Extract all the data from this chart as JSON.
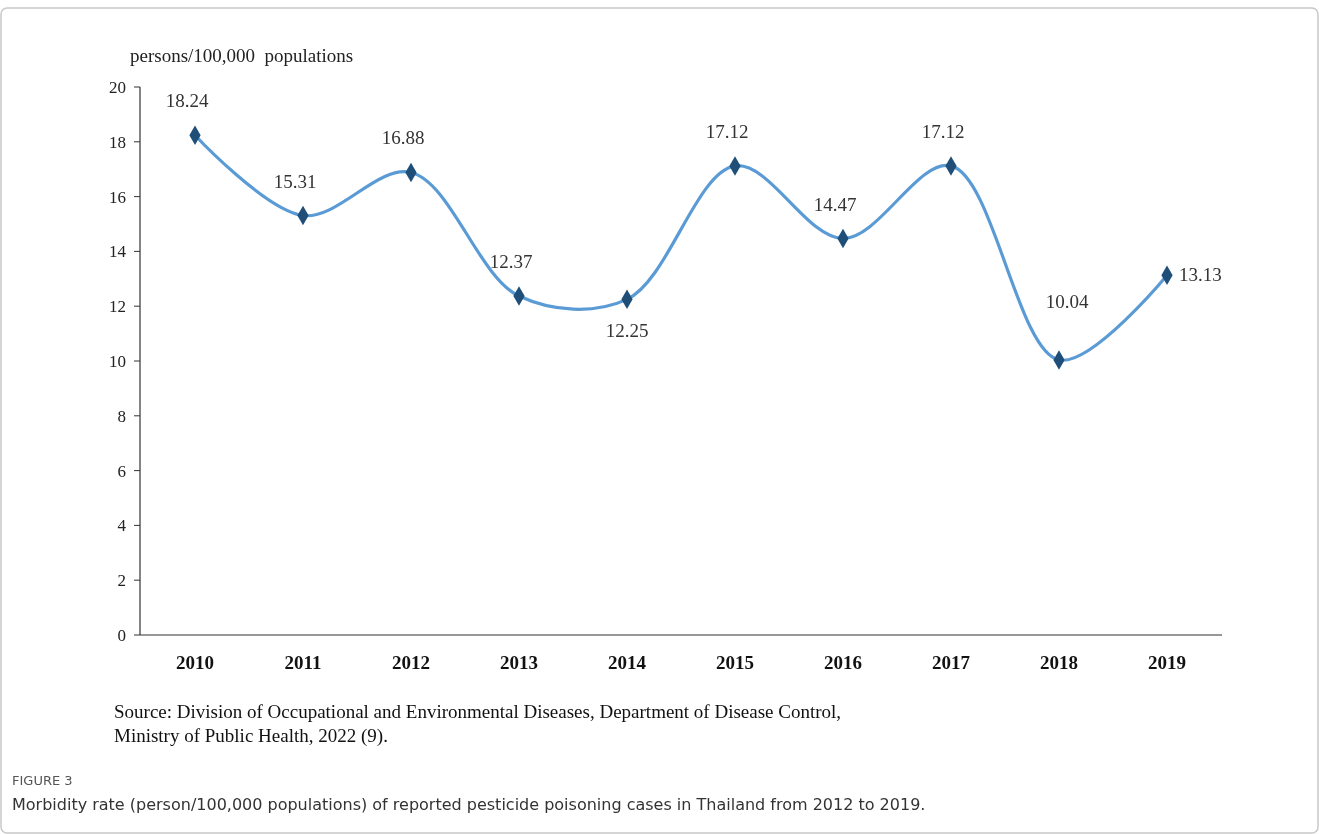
{
  "chart_data": {
    "type": "line",
    "ylabel": "persons/100,000  populations",
    "categories": [
      "2010",
      "2011",
      "2012",
      "2013",
      "2014",
      "2015",
      "2016",
      "2017",
      "2018",
      "2019"
    ],
    "series": [
      {
        "color": "#5b9bd5",
        "values": [
          18.24,
          15.31,
          16.88,
          12.37,
          12.25,
          17.12,
          14.47,
          17.12,
          10.04,
          13.13
        ]
      }
    ],
    "ylim": [
      0,
      20
    ],
    "yticks": [
      0,
      2,
      4,
      6,
      8,
      10,
      12,
      14,
      16,
      18,
      20
    ],
    "marker": "diamond",
    "line_style": "solid",
    "data_labels": true,
    "annotations": [
      "Source: Division of Occupational and Environmental Diseases, Department of Disease Control, Ministry of Public Health, 2022 (9).",
      "FIGURE 3",
      "Morbidity rate (person/100,000 populations) of reported pesticide poisoning cases in Thailand from 2012 to 2019."
    ]
  }
}
